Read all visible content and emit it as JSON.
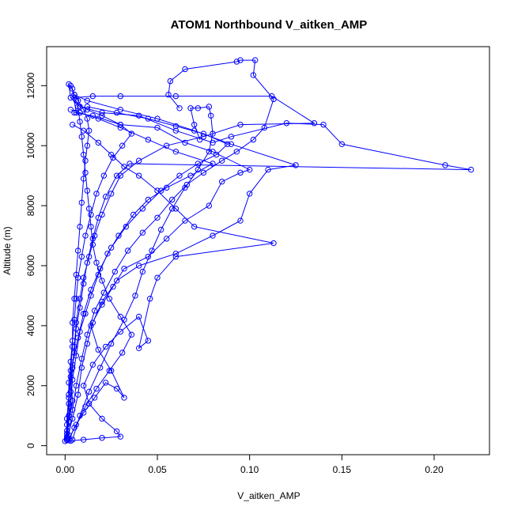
{
  "chart_data": {
    "type": "line",
    "title": "ATOM1 Northbound V_aitken_AMP",
    "xlabel": "V_aitken_AMP",
    "ylabel": "Altitude (m)",
    "xlim": [
      -0.01,
      0.23
    ],
    "ylim": [
      -300,
      13300
    ],
    "xticks": [
      0.0,
      0.05,
      0.1,
      0.15,
      0.2
    ],
    "xtick_labels": [
      "0.00",
      "0.05",
      "0.10",
      "0.15",
      "0.20"
    ],
    "yticks": [
      0,
      2000,
      4000,
      6000,
      8000,
      10000,
      12000
    ],
    "ytick_labels": [
      "0",
      "2000",
      "4000",
      "6000",
      "8000",
      "10000",
      "12000"
    ],
    "grid": false,
    "legend": "none",
    "color": "#0000ff",
    "marker": "open-circle",
    "series": [
      {
        "points": [
          [
            0.001,
            200
          ],
          [
            0.002,
            800
          ],
          [
            0.004,
            1500
          ],
          [
            0.003,
            2300
          ],
          [
            0.005,
            3100
          ],
          [
            0.006,
            3900
          ],
          [
            0.008,
            4600
          ],
          [
            0.01,
            5400
          ],
          [
            0.012,
            6100
          ],
          [
            0.015,
            6900
          ],
          [
            0.018,
            7600
          ],
          [
            0.022,
            8300
          ],
          [
            0.028,
            9000
          ],
          [
            0.035,
            9400
          ],
          [
            0.22,
            9200
          ],
          [
            0.206,
            9350
          ],
          [
            0.15,
            10050
          ],
          [
            0.14,
            10700
          ],
          [
            0.12,
            10750
          ],
          [
            0.09,
            10300
          ],
          [
            0.08,
            10100
          ],
          [
            0.06,
            10500
          ],
          [
            0.04,
            11000
          ],
          [
            0.02,
            11100
          ],
          [
            0.008,
            11300
          ],
          [
            0.003,
            11600
          ],
          [
            0.002,
            12050
          ],
          [
            0.004,
            11900
          ],
          [
            0.006,
            11100
          ]
        ]
      },
      {
        "points": [
          [
            0.001,
            250
          ],
          [
            0.004,
            900
          ],
          [
            0.007,
            1700
          ],
          [
            0.009,
            2600
          ],
          [
            0.012,
            3400
          ],
          [
            0.015,
            4100
          ],
          [
            0.02,
            4800
          ],
          [
            0.028,
            5500
          ],
          [
            0.04,
            6000
          ],
          [
            0.06,
            6400
          ],
          [
            0.08,
            7000
          ],
          [
            0.095,
            7500
          ],
          [
            0.1,
            8400
          ],
          [
            0.11,
            9200
          ],
          [
            0.125,
            9350
          ],
          [
            0.09,
            10050
          ],
          [
            0.07,
            10500
          ],
          [
            0.05,
            10900
          ],
          [
            0.03,
            11200
          ],
          [
            0.012,
            11500
          ],
          [
            0.005,
            11700
          ]
        ]
      },
      {
        "points": [
          [
            0.002,
            180
          ],
          [
            0.005,
            600
          ],
          [
            0.01,
            1100
          ],
          [
            0.016,
            1600
          ],
          [
            0.022,
            2100
          ],
          [
            0.028,
            1900
          ],
          [
            0.032,
            1600
          ],
          [
            0.025,
            2500
          ],
          [
            0.018,
            3200
          ],
          [
            0.014,
            4000
          ],
          [
            0.02,
            4700
          ],
          [
            0.026,
            5300
          ],
          [
            0.032,
            5900
          ],
          [
            0.045,
            6300
          ],
          [
            0.055,
            6900
          ],
          [
            0.065,
            7500
          ],
          [
            0.078,
            8000
          ],
          [
            0.085,
            8800
          ],
          [
            0.095,
            9100
          ],
          [
            0.1,
            9200
          ],
          [
            0.08,
            9800
          ],
          [
            0.065,
            10100
          ],
          [
            0.05,
            10600
          ],
          [
            0.03,
            10700
          ],
          [
            0.015,
            11000
          ],
          [
            0.005,
            11100
          ]
        ]
      },
      {
        "points": [
          [
            0.003,
            160
          ],
          [
            0.01,
            200
          ],
          [
            0.02,
            260
          ],
          [
            0.03,
            300
          ],
          [
            0.028,
            480
          ],
          [
            0.02,
            900
          ],
          [
            0.013,
            1400
          ],
          [
            0.01,
            2000
          ],
          [
            0.015,
            2700
          ],
          [
            0.022,
            3300
          ],
          [
            0.03,
            3800
          ],
          [
            0.04,
            4300
          ],
          [
            0.045,
            3500
          ],
          [
            0.04,
            3250
          ],
          [
            0.046,
            4900
          ],
          [
            0.05,
            5600
          ],
          [
            0.06,
            6300
          ],
          [
            0.113,
            6750
          ],
          [
            0.07,
            7300
          ],
          [
            0.06,
            7900
          ],
          [
            0.05,
            8500
          ],
          [
            0.04,
            9000
          ],
          [
            0.032,
            9300
          ],
          [
            0.025,
            9700
          ],
          [
            0.018,
            10100
          ],
          [
            0.01,
            10500
          ],
          [
            0.004,
            10700
          ]
        ]
      },
      {
        "points": [
          [
            0.001,
            300
          ],
          [
            0.002,
            1000
          ],
          [
            0.003,
            1800
          ],
          [
            0.004,
            2600
          ],
          [
            0.005,
            3300
          ],
          [
            0.006,
            4100
          ],
          [
            0.008,
            4900
          ],
          [
            0.01,
            5600
          ],
          [
            0.013,
            6300
          ],
          [
            0.016,
            7000
          ],
          [
            0.02,
            7700
          ],
          [
            0.025,
            8400
          ],
          [
            0.03,
            9000
          ],
          [
            0.04,
            9500
          ],
          [
            0.055,
            10000
          ],
          [
            0.075,
            10300
          ],
          [
            0.095,
            10700
          ],
          [
            0.135,
            10750
          ],
          [
            0.112,
            11650
          ],
          [
            0.06,
            11650
          ],
          [
            0.03,
            11650
          ],
          [
            0.015,
            11650
          ],
          [
            0.005,
            11600
          ]
        ]
      },
      {
        "points": [
          [
            0.002,
            350
          ],
          [
            0.004,
            1200
          ],
          [
            0.006,
            2000
          ],
          [
            0.009,
            2900
          ],
          [
            0.012,
            3700
          ],
          [
            0.016,
            4500
          ],
          [
            0.021,
            5100
          ],
          [
            0.027,
            5800
          ],
          [
            0.034,
            6500
          ],
          [
            0.042,
            7100
          ],
          [
            0.05,
            7600
          ],
          [
            0.058,
            8200
          ],
          [
            0.066,
            8700
          ],
          [
            0.075,
            9100
          ],
          [
            0.085,
            9500
          ],
          [
            0.093,
            9800
          ],
          [
            0.102,
            10200
          ],
          [
            0.108,
            10600
          ],
          [
            0.113,
            11550
          ],
          [
            0.102,
            12350
          ],
          [
            0.103,
            12850
          ],
          [
            0.095,
            12850
          ],
          [
            0.093,
            12800
          ],
          [
            0.065,
            12550
          ],
          [
            0.057,
            12150
          ],
          [
            0.056,
            11700
          ],
          [
            0.062,
            11250
          ]
        ]
      },
      {
        "points": [
          [
            0.001,
            400
          ],
          [
            0.003,
            1300
          ],
          [
            0.004,
            2200
          ],
          [
            0.006,
            3000
          ],
          [
            0.008,
            3800
          ],
          [
            0.011,
            4400
          ],
          [
            0.014,
            5000
          ],
          [
            0.018,
            5700
          ],
          [
            0.023,
            6400
          ],
          [
            0.029,
            7000
          ],
          [
            0.037,
            7700
          ],
          [
            0.045,
            8200
          ],
          [
            0.055,
            8600
          ],
          [
            0.068,
            9000
          ],
          [
            0.08,
            9400
          ],
          [
            0.06,
            9800
          ],
          [
            0.045,
            10200
          ],
          [
            0.03,
            10600
          ],
          [
            0.018,
            10900
          ],
          [
            0.008,
            11100
          ],
          [
            0.003,
            11200
          ]
        ]
      },
      {
        "points": [
          [
            0.0,
            150
          ],
          [
            0.001,
            700
          ],
          [
            0.002,
            1400
          ],
          [
            0.002,
            2100
          ],
          [
            0.003,
            2800
          ],
          [
            0.004,
            3500
          ],
          [
            0.005,
            4200
          ],
          [
            0.006,
            4900
          ],
          [
            0.007,
            5600
          ],
          [
            0.009,
            6300
          ],
          [
            0.011,
            7000
          ],
          [
            0.014,
            7700
          ],
          [
            0.017,
            8400
          ],
          [
            0.021,
            9000
          ],
          [
            0.026,
            9600
          ],
          [
            0.031,
            10000
          ],
          [
            0.036,
            10400
          ],
          [
            0.03,
            10700
          ],
          [
            0.02,
            11000
          ],
          [
            0.012,
            11200
          ]
        ]
      },
      {
        "points": [
          [
            0.004,
            200
          ],
          [
            0.008,
            1000
          ],
          [
            0.013,
            1800
          ],
          [
            0.019,
            2600
          ],
          [
            0.025,
            3400
          ],
          [
            0.032,
            4200
          ],
          [
            0.038,
            5000
          ],
          [
            0.042,
            5800
          ],
          [
            0.047,
            6500
          ],
          [
            0.052,
            7200
          ],
          [
            0.058,
            7900
          ],
          [
            0.065,
            8600
          ],
          [
            0.072,
            9200
          ],
          [
            0.078,
            9800
          ],
          [
            0.08,
            10400
          ],
          [
            0.079,
            11000
          ],
          [
            0.078,
            11300
          ],
          [
            0.072,
            11250
          ],
          [
            0.068,
            11250
          ],
          [
            0.07,
            10700
          ],
          [
            0.073,
            10200
          ]
        ]
      },
      {
        "points": [
          [
            0.002,
            220
          ],
          [
            0.006,
            700
          ],
          [
            0.011,
            1300
          ],
          [
            0.017,
            1900
          ],
          [
            0.024,
            2500
          ],
          [
            0.031,
            3100
          ],
          [
            0.036,
            3700
          ],
          [
            0.03,
            4300
          ],
          [
            0.024,
            4900
          ],
          [
            0.02,
            5500
          ],
          [
            0.017,
            6100
          ],
          [
            0.015,
            6700
          ],
          [
            0.014,
            7300
          ],
          [
            0.013,
            7900
          ],
          [
            0.012,
            8500
          ],
          [
            0.011,
            9100
          ],
          [
            0.01,
            9700
          ],
          [
            0.009,
            10300
          ],
          [
            0.008,
            10800
          ],
          [
            0.007,
            11300
          ],
          [
            0.006,
            11500
          ]
        ]
      },
      {
        "points": [
          [
            0.001,
            500
          ],
          [
            0.002,
            1600
          ],
          [
            0.004,
            2700
          ],
          [
            0.007,
            3600
          ],
          [
            0.01,
            4400
          ],
          [
            0.014,
            5200
          ],
          [
            0.019,
            5900
          ],
          [
            0.025,
            6600
          ],
          [
            0.033,
            7300
          ],
          [
            0.042,
            7900
          ],
          [
            0.052,
            8500
          ],
          [
            0.062,
            9000
          ],
          [
            0.072,
            9400
          ],
          [
            0.082,
            9700
          ],
          [
            0.088,
            10050
          ],
          [
            0.075,
            10400
          ],
          [
            0.06,
            10650
          ],
          [
            0.045,
            10900
          ],
          [
            0.028,
            11100
          ],
          [
            0.012,
            11300
          ]
        ]
      },
      {
        "points": [
          [
            0.001,
            180
          ],
          [
            0.001,
            900
          ],
          [
            0.002,
            1700
          ],
          [
            0.003,
            2500
          ],
          [
            0.004,
            3300
          ],
          [
            0.004,
            4100
          ],
          [
            0.005,
            4900
          ],
          [
            0.006,
            5700
          ],
          [
            0.007,
            6500
          ],
          [
            0.008,
            7300
          ],
          [
            0.009,
            8100
          ],
          [
            0.01,
            8900
          ],
          [
            0.011,
            9500
          ],
          [
            0.012,
            10000
          ],
          [
            0.013,
            10500
          ],
          [
            0.012,
            10900
          ],
          [
            0.01,
            11200
          ],
          [
            0.007,
            11500
          ],
          [
            0.005,
            11700
          ],
          [
            0.003,
            12000
          ]
        ]
      }
    ]
  }
}
